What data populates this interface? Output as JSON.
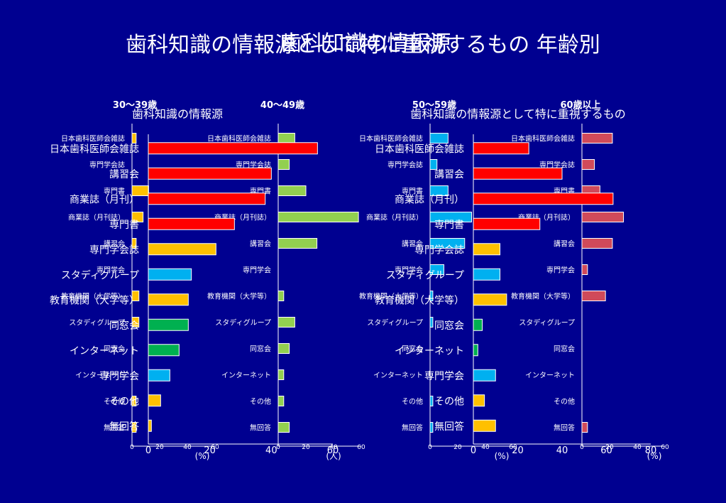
{
  "titles": {
    "main": "歯科知識の情報源として特に重視するもの 年齢別",
    "overlay": "歯科知識の情報源"
  },
  "colors": {
    "background": "#000090",
    "red": "#ff0000",
    "orange": "#ffc000",
    "green": "#00b050",
    "blue": "#00b0f0",
    "light_green": "#92d050",
    "pink": "#d04a5a"
  },
  "chart_data": [
    {
      "type": "bar",
      "orientation": "horizontal",
      "title": "30～39歳",
      "categories": [
        "日本歯科医師会雑誌",
        "専門学会誌",
        "専門書",
        "商業誌（月刊誌）",
        "講習会",
        "専門学会",
        "教育機関（大学等）",
        "スタディグループ",
        "同窓会",
        "インターネット",
        "その他",
        "無回答"
      ],
      "values": [
        3,
        0,
        12,
        8,
        3,
        0,
        5,
        5,
        0,
        0,
        3,
        3
      ],
      "xlim": [
        0,
        60
      ],
      "xticks": [
        0,
        20,
        40,
        60
      ],
      "xlabel": "(%)",
      "color": "#ffc000"
    },
    {
      "type": "bar",
      "orientation": "horizontal",
      "title": "40～49歳",
      "categories": [
        "日本歯科医師会雑誌",
        "専門学会誌",
        "専門書",
        "商業誌（月刊誌）",
        "講習会",
        "専門学会",
        "教育機関（大学等）",
        "スタディグループ",
        "同窓会",
        "インターネット",
        "その他",
        "無回答"
      ],
      "values": [
        12,
        8,
        20,
        58,
        28,
        0,
        4,
        12,
        8,
        4,
        4,
        8
      ],
      "xlim": [
        0,
        60
      ],
      "xticks": [
        0,
        20,
        40,
        60
      ],
      "xlabel": "",
      "color": "#92d050"
    },
    {
      "type": "bar",
      "orientation": "horizontal",
      "title": "50～59歳",
      "categories": [
        "日本歯科医師会雑誌",
        "専門学会誌",
        "専門書",
        "商業誌（月刊誌）",
        "講習会",
        "専門学会",
        "教育機関（大学等）",
        "スタディグループ",
        "同窓会",
        "インターネット",
        "その他",
        "無回答"
      ],
      "values": [
        13,
        5,
        13,
        30,
        25,
        10,
        2,
        2,
        0,
        0,
        2,
        2
      ],
      "xlim": [
        0,
        60
      ],
      "xticks": [
        0,
        20,
        40,
        60
      ],
      "xlabel": "",
      "color": "#00b0f0"
    },
    {
      "type": "bar",
      "orientation": "horizontal",
      "title": "60歳以上",
      "categories": [
        "日本歯科医師会雑誌",
        "専門学会誌",
        "専門書",
        "商業誌（月刊誌）",
        "講習会",
        "専門学会",
        "教育機関（大学等）",
        "スタディグループ",
        "同窓会",
        "インターネット",
        "その他",
        "無回答"
      ],
      "values": [
        22,
        9,
        13,
        30,
        22,
        4,
        17,
        0,
        0,
        0,
        0,
        4
      ],
      "xlim": [
        0,
        60
      ],
      "xticks": [
        0,
        20,
        40,
        60
      ],
      "xlabel": "(%)",
      "color": "#d04a5a"
    },
    {
      "type": "bar",
      "orientation": "horizontal",
      "title": "歯科知識の情報源",
      "categories": [
        "日本歯科医師会雑誌",
        "講習会",
        "商業誌（月刊）",
        "専門書",
        "専門学会誌",
        "スタディグループ",
        "教育機関（大学等）",
        "同窓会",
        "インターネット",
        "専門学会",
        "その他",
        "無回答"
      ],
      "values": [
        55,
        40,
        38,
        28,
        22,
        14,
        13,
        13,
        10,
        7,
        4,
        1
      ],
      "colors": [
        "#ff0000",
        "#ff0000",
        "#ff0000",
        "#ff0000",
        "#ffc000",
        "#00b0f0",
        "#ffc000",
        "#00b050",
        "#00b050",
        "#00b0f0",
        "#ffc000",
        "#ffc000"
      ],
      "xlim": [
        0,
        60
      ],
      "xticks": [
        0,
        20,
        40,
        60
      ],
      "xlabel": "(人)"
    },
    {
      "type": "bar",
      "orientation": "horizontal",
      "title": "歯科知識の情報源として特に重視するもの",
      "categories": [
        "日本歯科医師会雑誌",
        "講習会",
        "商業誌（月刊）",
        "専門書",
        "専門学会誌",
        "スタディグループ",
        "教育機関（大学等）",
        "同窓会",
        "インターネット",
        "専門学会",
        "その他",
        "無回答"
      ],
      "values": [
        25,
        40,
        63,
        30,
        12,
        12,
        15,
        4,
        2,
        10,
        5,
        10
      ],
      "colors": [
        "#ff0000",
        "#ff0000",
        "#ff0000",
        "#ff0000",
        "#ffc000",
        "#00b0f0",
        "#ffc000",
        "#00b050",
        "#00b050",
        "#00b0f0",
        "#ffc000",
        "#ffc000"
      ],
      "xlim": [
        0,
        80
      ],
      "xticks": [
        0,
        20,
        40,
        60,
        80
      ],
      "xlabel": "(%)"
    }
  ]
}
